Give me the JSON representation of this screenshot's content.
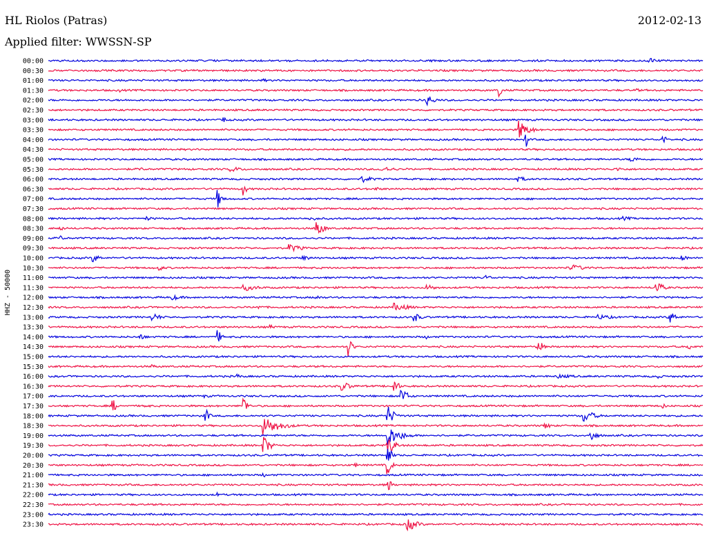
{
  "header": {
    "station": "HL Riolos (Patras)",
    "date": "2012-02-13",
    "filter": "Applied filter: WWSSN-SP"
  },
  "chart_data": {
    "type": "line",
    "title": "HL Riolos (Patras)",
    "ylabel": "HHZ - 50000",
    "xlabel": "",
    "colors": [
      "#0000dd",
      "#ee1144"
    ],
    "rows": [
      {
        "label": "00:00",
        "events": [
          {
            "t": 0.92,
            "a": 4,
            "d": 0.03
          }
        ]
      },
      {
        "label": "00:30",
        "events": []
      },
      {
        "label": "01:00",
        "events": [
          {
            "t": 0.33,
            "a": 3,
            "d": 0.01
          }
        ]
      },
      {
        "label": "01:30",
        "events": [
          {
            "t": 0.11,
            "a": 3,
            "d": 0.01
          },
          {
            "t": 0.69,
            "a": 14,
            "d": 0.005
          },
          {
            "t": 0.9,
            "a": 3,
            "d": 0.01
          }
        ]
      },
      {
        "label": "02:00",
        "events": [
          {
            "t": 0.58,
            "a": 9,
            "d": 0.02
          }
        ]
      },
      {
        "label": "02:30",
        "events": []
      },
      {
        "label": "03:00",
        "events": [
          {
            "t": 0.27,
            "a": 4,
            "d": 0.01
          }
        ]
      },
      {
        "label": "03:30",
        "events": [
          {
            "t": 0.72,
            "a": 14,
            "d": 0.03
          }
        ]
      },
      {
        "label": "04:00",
        "events": [
          {
            "t": 0.94,
            "a": 7,
            "d": 0.01
          },
          {
            "t": 0.73,
            "a": 13,
            "d": 0.005
          }
        ]
      },
      {
        "label": "04:30",
        "events": []
      },
      {
        "label": "05:00",
        "events": [
          {
            "t": 0.89,
            "a": 4,
            "d": 0.04
          }
        ]
      },
      {
        "label": "05:30",
        "events": [
          {
            "t": 0.14,
            "a": 3,
            "d": 0.02
          },
          {
            "t": 0.28,
            "a": 4,
            "d": 0.04
          },
          {
            "t": 0.51,
            "a": 4,
            "d": 0.05
          },
          {
            "t": 0.87,
            "a": 3,
            "d": 0.03
          }
        ]
      },
      {
        "label": "06:00",
        "events": [
          {
            "t": 0.48,
            "a": 5,
            "d": 0.04
          },
          {
            "t": 0.72,
            "a": 4,
            "d": 0.03
          }
        ]
      },
      {
        "label": "06:30",
        "events": [
          {
            "t": 0.3,
            "a": 12,
            "d": 0.005
          },
          {
            "t": 0.5,
            "a": 3,
            "d": 0.02
          }
        ]
      },
      {
        "label": "07:00",
        "events": [
          {
            "t": 0.26,
            "a": 14,
            "d": 0.01
          }
        ]
      },
      {
        "label": "07:30",
        "events": []
      },
      {
        "label": "08:00",
        "events": [
          {
            "t": 0.15,
            "a": 3,
            "d": 0.03
          },
          {
            "t": 0.4,
            "a": 3,
            "d": 0.05
          },
          {
            "t": 0.88,
            "a": 3,
            "d": 0.04
          }
        ]
      },
      {
        "label": "08:30",
        "events": [
          {
            "t": 0.41,
            "a": 14,
            "d": 0.02
          },
          {
            "t": 0.02,
            "a": 4,
            "d": 0.01
          }
        ]
      },
      {
        "label": "09:00",
        "events": [
          {
            "t": 0.02,
            "a": 4,
            "d": 0.01
          }
        ]
      },
      {
        "label": "09:30",
        "events": [
          {
            "t": 0.37,
            "a": 6,
            "d": 0.04
          }
        ]
      },
      {
        "label": "10:00",
        "events": [
          {
            "t": 0.07,
            "a": 6,
            "d": 0.02
          },
          {
            "t": 0.39,
            "a": 4,
            "d": 0.03
          },
          {
            "t": 0.97,
            "a": 4,
            "d": 0.02
          }
        ]
      },
      {
        "label": "10:30",
        "events": [
          {
            "t": 0.17,
            "a": 4,
            "d": 0.02
          },
          {
            "t": 0.8,
            "a": 5,
            "d": 0.05
          }
        ]
      },
      {
        "label": "11:00",
        "events": [
          {
            "t": 0.67,
            "a": 4,
            "d": 0.02
          }
        ]
      },
      {
        "label": "11:30",
        "events": [
          {
            "t": 0.3,
            "a": 5,
            "d": 0.05
          },
          {
            "t": 0.58,
            "a": 5,
            "d": 0.03
          },
          {
            "t": 0.93,
            "a": 10,
            "d": 0.02
          }
        ]
      },
      {
        "label": "12:00",
        "events": [
          {
            "t": 0.19,
            "a": 4,
            "d": 0.04
          },
          {
            "t": 0.41,
            "a": 3,
            "d": 0.03
          }
        ]
      },
      {
        "label": "12:30",
        "events": [
          {
            "t": 0.53,
            "a": 6,
            "d": 0.05
          },
          {
            "t": 0.32,
            "a": 3,
            "d": 0.03
          }
        ]
      },
      {
        "label": "13:00",
        "events": [
          {
            "t": 0.16,
            "a": 6,
            "d": 0.03
          },
          {
            "t": 0.56,
            "a": 7,
            "d": 0.02
          },
          {
            "t": 0.84,
            "a": 4,
            "d": 0.06
          },
          {
            "t": 0.95,
            "a": 9,
            "d": 0.02
          }
        ]
      },
      {
        "label": "13:30",
        "events": [
          {
            "t": 0.34,
            "a": 3,
            "d": 0.02
          }
        ]
      },
      {
        "label": "14:00",
        "events": [
          {
            "t": 0.14,
            "a": 5,
            "d": 0.02
          },
          {
            "t": 0.26,
            "a": 10,
            "d": 0.01
          },
          {
            "t": 0.58,
            "a": 3,
            "d": 0.01
          }
        ]
      },
      {
        "label": "14:30",
        "events": [
          {
            "t": 0.46,
            "a": 14,
            "d": 0.01
          },
          {
            "t": 0.75,
            "a": 14,
            "d": 0.01
          },
          {
            "t": 0.98,
            "a": 4,
            "d": 0.02
          }
        ]
      },
      {
        "label": "15:00",
        "events": []
      },
      {
        "label": "15:30",
        "events": [
          {
            "t": 0.16,
            "a": 3,
            "d": 0.02
          }
        ]
      },
      {
        "label": "16:00",
        "events": [
          {
            "t": 0.78,
            "a": 3,
            "d": 0.08
          },
          {
            "t": 0.93,
            "a": 4,
            "d": 0.02
          },
          {
            "t": 0.29,
            "a": 4,
            "d": 0.01
          }
        ]
      },
      {
        "label": "16:30",
        "events": [
          {
            "t": 0.45,
            "a": 7,
            "d": 0.03
          },
          {
            "t": 0.53,
            "a": 14,
            "d": 0.01
          }
        ]
      },
      {
        "label": "17:00",
        "events": [
          {
            "t": 0.54,
            "a": 12,
            "d": 0.02
          },
          {
            "t": 0.24,
            "a": 3,
            "d": 0.02
          }
        ]
      },
      {
        "label": "17:30",
        "events": [
          {
            "t": 0.1,
            "a": 9,
            "d": 0.01
          },
          {
            "t": 0.15,
            "a": 3,
            "d": 0.02
          },
          {
            "t": 0.3,
            "a": 14,
            "d": 0.01
          },
          {
            "t": 0.94,
            "a": 4,
            "d": 0.01
          }
        ]
      },
      {
        "label": "18:00",
        "events": [
          {
            "t": 0.24,
            "a": 14,
            "d": 0.01
          },
          {
            "t": 0.52,
            "a": 14,
            "d": 0.02
          },
          {
            "t": 0.82,
            "a": 10,
            "d": 0.03
          }
        ]
      },
      {
        "label": "18:30",
        "events": [
          {
            "t": 0.33,
            "a": 14,
            "d": 0.05
          },
          {
            "t": 0.76,
            "a": 5,
            "d": 0.02
          }
        ]
      },
      {
        "label": "19:00",
        "events": [
          {
            "t": 0.52,
            "a": 14,
            "d": 0.04
          },
          {
            "t": 0.83,
            "a": 8,
            "d": 0.02
          }
        ]
      },
      {
        "label": "19:30",
        "events": [
          {
            "t": 0.33,
            "a": 14,
            "d": 0.02
          },
          {
            "t": 0.52,
            "a": 14,
            "d": 0.02
          }
        ]
      },
      {
        "label": "20:00",
        "events": [
          {
            "t": 0.52,
            "a": 14,
            "d": 0.01
          }
        ]
      },
      {
        "label": "20:30",
        "events": [
          {
            "t": 0.52,
            "a": 14,
            "d": 0.01
          },
          {
            "t": 0.47,
            "a": 3,
            "d": 0.01
          }
        ]
      },
      {
        "label": "21:00",
        "events": [
          {
            "t": 0.33,
            "a": 3,
            "d": 0.01
          }
        ]
      },
      {
        "label": "21:30",
        "events": [
          {
            "t": 0.52,
            "a": 10,
            "d": 0.01
          }
        ]
      },
      {
        "label": "22:00",
        "events": [
          {
            "t": 0.26,
            "a": 3,
            "d": 0.01
          }
        ]
      },
      {
        "label": "22:30",
        "events": []
      },
      {
        "label": "23:00",
        "events": []
      },
      {
        "label": "23:30",
        "events": [
          {
            "t": 0.55,
            "a": 10,
            "d": 0.03
          }
        ]
      }
    ]
  }
}
